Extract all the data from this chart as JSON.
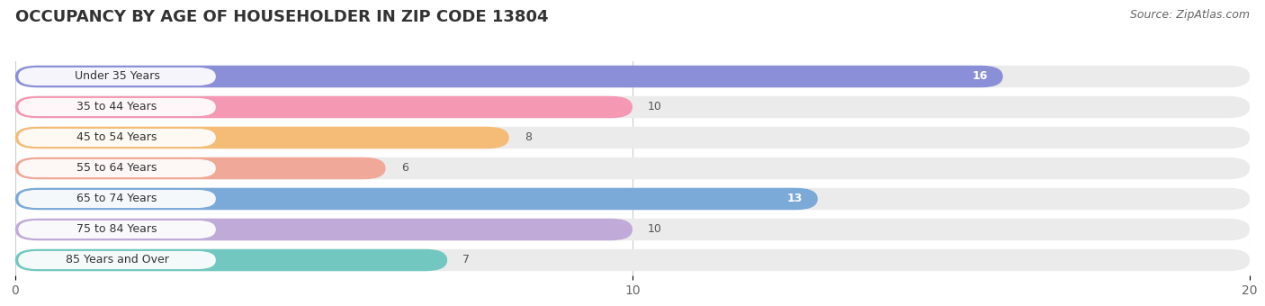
{
  "title": "OCCUPANCY BY AGE OF HOUSEHOLDER IN ZIP CODE 13804",
  "source": "Source: ZipAtlas.com",
  "categories": [
    "Under 35 Years",
    "35 to 44 Years",
    "45 to 54 Years",
    "55 to 64 Years",
    "65 to 74 Years",
    "75 to 84 Years",
    "85 Years and Over"
  ],
  "values": [
    16,
    10,
    8,
    6,
    13,
    10,
    7
  ],
  "bar_colors": [
    "#8b8fd8",
    "#f498b4",
    "#f5bc78",
    "#f0a898",
    "#7baad8",
    "#c0aad8",
    "#72c8c0"
  ],
  "bar_bg_color": "#ebebeb",
  "xlim": [
    0,
    20
  ],
  "xticks": [
    0,
    10,
    20
  ],
  "value_color_inside": [
    true,
    false,
    false,
    false,
    true,
    false,
    false
  ],
  "title_fontsize": 13,
  "source_fontsize": 9,
  "background_color": "#ffffff",
  "bar_height": 0.72,
  "bar_gap": 0.28
}
